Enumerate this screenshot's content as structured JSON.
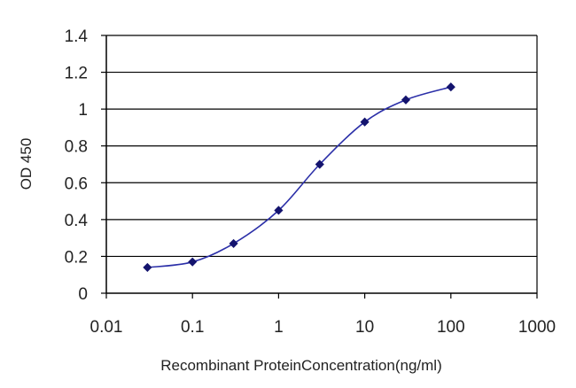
{
  "chart_data": {
    "type": "line",
    "title": "",
    "xlabel": "Recombinant ProteinConcentration(ng/ml)",
    "ylabel": "OD 450",
    "x_scale": "log",
    "xlim": [
      0.01,
      1000
    ],
    "ylim": [
      0,
      1.4
    ],
    "x_ticks": [
      0.01,
      0.1,
      1,
      10,
      100,
      1000
    ],
    "x_tick_labels": [
      "0.01",
      "0.1",
      "1",
      "10",
      "100",
      "1000"
    ],
    "y_ticks": [
      0,
      0.2,
      0.4,
      0.6,
      0.8,
      1,
      1.2,
      1.4
    ],
    "y_tick_labels": [
      "0",
      "0.2",
      "0.4",
      "0.6",
      "0.8",
      "1",
      "1.2",
      "1.4"
    ],
    "grid": "horizontal",
    "legend": "none",
    "colors": {
      "line": "#2b2fa8",
      "marker": "#14146e",
      "grid": "#000000",
      "axis": "#000000"
    },
    "series": [
      {
        "x": [
          0.03,
          0.1,
          0.3,
          1,
          3,
          10,
          30,
          100
        ],
        "y": [
          0.14,
          0.17,
          0.27,
          0.45,
          0.7,
          0.93,
          1.05,
          1.12
        ]
      }
    ]
  }
}
